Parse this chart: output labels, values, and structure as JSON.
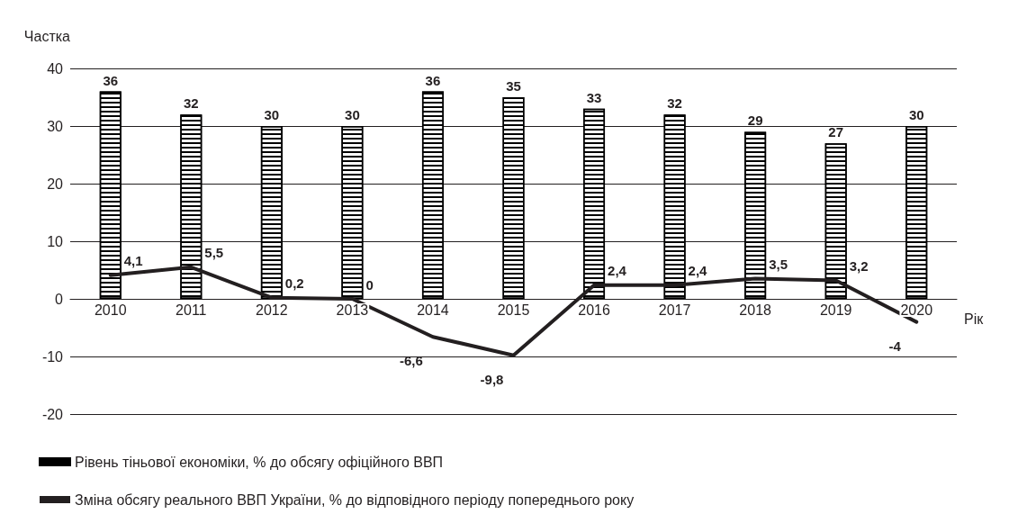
{
  "chart_data": {
    "type": "bar",
    "ylabel": "Частка",
    "xlabel": "Рік",
    "categories": [
      "2010",
      "2011",
      "2012",
      "2013",
      "2014",
      "2015",
      "2016",
      "2017",
      "2018",
      "2019",
      "2020"
    ],
    "series": [
      {
        "name": "Рівень тіньової економіки, % до обсягу офіційного ВВП",
        "color": "#000000",
        "values": [
          36,
          32,
          30,
          30,
          36,
          35,
          33,
          32,
          29,
          27,
          30
        ],
        "value_labels": [
          "36",
          "32",
          "30",
          "30",
          "36",
          "35",
          "33",
          "32",
          "29",
          "27",
          "30"
        ]
      },
      {
        "name": "Зміна обсягу реального ВВП України, % до відповідного періоду попереднього року",
        "type": "line",
        "color": "#231f20",
        "marker": "none",
        "values": [
          4.1,
          5.5,
          0.2,
          0,
          -6.6,
          -9.8,
          2.4,
          2.4,
          3.5,
          3.2,
          -4
        ],
        "value_labels": [
          "4,1",
          "5,5",
          "0,2",
          "0",
          "-6,6",
          "-9,8",
          "2,4",
          "2,4",
          "3,5",
          "3,2",
          "-4"
        ]
      }
    ],
    "ylim": [
      -20,
      40
    ],
    "yticks": [
      -20,
      -10,
      0,
      10,
      20,
      30,
      40
    ],
    "grid": "y",
    "legend": "bottom left"
  }
}
